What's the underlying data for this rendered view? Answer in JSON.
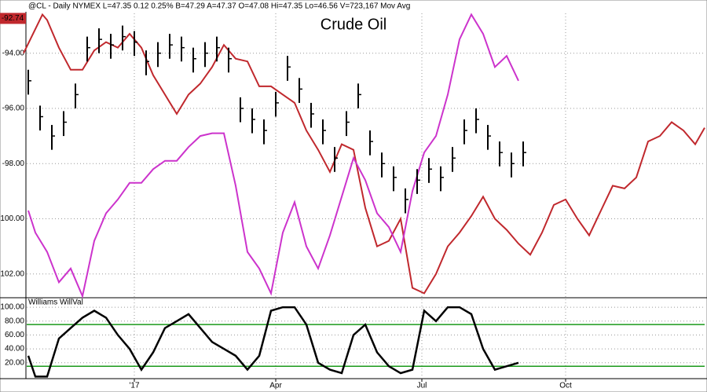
{
  "chart_data": [
    {
      "type": "ohlc",
      "title": "Crude Oil",
      "subtitle": "@CL - Daily  NYMEX  L=47.35  0.12  0.25%  B=47.29  A=47.37  O=47.08  Hi=47.35  Lo=46.56  V=723,167  Mov Avg",
      "xlim": [
        0,
        289
      ],
      "xticks": [
        {
          "value": 47,
          "label": "'17"
        },
        {
          "value": 107,
          "label": "Apr"
        },
        {
          "value": 169,
          "label": "Jul"
        },
        {
          "value": 230,
          "label": "Oct"
        }
      ],
      "ylim": [
        -102.86,
        -92.5
      ],
      "yticks": [
        {
          "value": -94,
          "label": "-94.00"
        },
        {
          "value": -96,
          "label": "-96.00"
        },
        {
          "value": -98,
          "label": "-98.00"
        },
        {
          "value": -100,
          "label": "-100.00"
        },
        {
          "value": -102,
          "label": "-102.00"
        }
      ],
      "last": {
        "value": -92.74,
        "label": "-92.74",
        "color": "#c0282d"
      },
      "grid": true,
      "bars": {
        "color": "#000000",
        "x": [
          2,
          7,
          12,
          17,
          22,
          27,
          32,
          37,
          42,
          47,
          52,
          57,
          62,
          67,
          72,
          77,
          82,
          87,
          92,
          97,
          102,
          107,
          112,
          117,
          122,
          127,
          132,
          137,
          142,
          147,
          152,
          157,
          162,
          167,
          172,
          177,
          182,
          187,
          192,
          197,
          202,
          207,
          212
        ],
        "high": [
          -94.6,
          -95.9,
          -96.6,
          -96.1,
          -95.1,
          -93.4,
          -93.1,
          -93.3,
          -93.0,
          -93.2,
          -93.9,
          -93.6,
          -93.3,
          -93.4,
          -93.8,
          -93.6,
          -93.4,
          -93.8,
          -95.6,
          -96.0,
          -96.4,
          -95.4,
          -94.1,
          -94.9,
          -95.8,
          -96.4,
          -97.4,
          -96.1,
          -95.1,
          -96.8,
          -97.6,
          -98.1,
          -98.9,
          -98.2,
          -97.8,
          -98.1,
          -97.4,
          -96.4,
          -96.0,
          -96.6,
          -97.2,
          -97.6,
          -97.2
        ],
        "low": [
          -95.5,
          -96.8,
          -97.5,
          -97.0,
          -96.0,
          -94.3,
          -94.0,
          -94.2,
          -93.9,
          -94.1,
          -94.8,
          -94.5,
          -94.2,
          -94.3,
          -94.7,
          -94.5,
          -94.3,
          -94.7,
          -96.5,
          -96.9,
          -97.3,
          -96.3,
          -95.0,
          -95.8,
          -96.7,
          -97.3,
          -98.3,
          -97.0,
          -96.0,
          -97.7,
          -98.5,
          -99.0,
          -99.8,
          -99.1,
          -98.7,
          -99.0,
          -98.3,
          -97.3,
          -96.9,
          -97.5,
          -98.1,
          -98.5,
          -98.1
        ],
        "close": [
          -95.0,
          -96.3,
          -97.0,
          -96.5,
          -95.5,
          -93.8,
          -93.5,
          -93.7,
          -93.4,
          -93.6,
          -94.3,
          -94.0,
          -93.7,
          -93.8,
          -94.2,
          -94.0,
          -93.8,
          -94.2,
          -96.0,
          -96.4,
          -96.8,
          -95.8,
          -94.5,
          -95.3,
          -96.2,
          -96.8,
          -97.8,
          -96.5,
          -95.5,
          -97.2,
          -98.0,
          -98.5,
          -99.3,
          -98.6,
          -98.2,
          -98.5,
          -97.8,
          -96.8,
          -96.4,
          -97.0,
          -97.6,
          -98.0,
          -97.6
        ]
      },
      "lines": [
        {
          "color": "#c0282d",
          "x": [
            0,
            8,
            10,
            15,
            20,
            25,
            30,
            35,
            40,
            45,
            50,
            55,
            60,
            65,
            70,
            75,
            80,
            85,
            90,
            95,
            100,
            105,
            110,
            115,
            120,
            125,
            130,
            135,
            140,
            145,
            150,
            155,
            160,
            165,
            170,
            175,
            180,
            185,
            190,
            195,
            200,
            205,
            210,
            215,
            220,
            225,
            230,
            235,
            240,
            245,
            250,
            255,
            260,
            265,
            270,
            275,
            280,
            285,
            289
          ],
          "values": [
            -94.0,
            -92.6,
            -92.8,
            -93.8,
            -94.6,
            -94.6,
            -93.9,
            -93.6,
            -93.8,
            -93.3,
            -93.8,
            -94.8,
            -95.5,
            -96.2,
            -95.5,
            -95.1,
            -94.5,
            -93.7,
            -94.2,
            -94.3,
            -95.2,
            -95.2,
            -95.5,
            -95.8,
            -96.8,
            -97.5,
            -98.3,
            -97.3,
            -97.5,
            -99.6,
            -101.0,
            -100.8,
            -100.0,
            -102.5,
            -102.7,
            -102.0,
            -101.0,
            -100.5,
            -99.9,
            -99.2,
            -100.0,
            -100.4,
            -100.9,
            -101.3,
            -100.5,
            -99.5,
            -99.3,
            -100.0,
            -100.6,
            -99.7,
            -98.8,
            -98.9,
            -98.5,
            -97.2,
            -97.0,
            -96.5,
            -96.8,
            -97.3,
            -96.7
          ]
        },
        {
          "color": "#cc33cc",
          "x": [
            2,
            5,
            10,
            15,
            20,
            25,
            30,
            35,
            40,
            45,
            50,
            55,
            60,
            65,
            70,
            75,
            80,
            85,
            90,
            95,
            100,
            105,
            110,
            115,
            120,
            125,
            130,
            135,
            140,
            145,
            150,
            155,
            160,
            165,
            170,
            175,
            180,
            185,
            190,
            195,
            200,
            205,
            210
          ],
          "values": [
            -99.7,
            -100.5,
            -101.2,
            -102.3,
            -101.8,
            -102.8,
            -100.8,
            -99.8,
            -99.3,
            -98.7,
            -98.7,
            -98.2,
            -97.9,
            -97.9,
            -97.4,
            -97.0,
            -96.9,
            -96.9,
            -98.8,
            -101.2,
            -101.8,
            -102.7,
            -100.5,
            -99.4,
            -101.0,
            -101.8,
            -100.6,
            -99.2,
            -97.8,
            -98.6,
            -99.8,
            -100.3,
            -101.2,
            -99.0,
            -97.6,
            -97.0,
            -95.5,
            -93.5,
            -92.6,
            -93.3,
            -94.5,
            -94.1,
            -95.0
          ]
        }
      ]
    },
    {
      "type": "line",
      "title": "Williams WillVal",
      "xlim": [
        0,
        289
      ],
      "ylim": [
        -2.9,
        113.7
      ],
      "yticks": [
        {
          "value": 20,
          "label": "20.00"
        },
        {
          "value": 40,
          "label": "40.00"
        },
        {
          "value": 60,
          "label": "60.00"
        },
        {
          "value": 80,
          "label": "80.00"
        },
        {
          "value": 100,
          "label": "100.00"
        }
      ],
      "hlines": [
        15,
        75
      ],
      "hline_color": "#1a9a1a",
      "grid": true,
      "color": "#000000",
      "x": [
        2,
        5,
        10,
        15,
        20,
        25,
        30,
        35,
        40,
        45,
        50,
        55,
        60,
        65,
        70,
        75,
        80,
        85,
        90,
        95,
        100,
        105,
        110,
        115,
        120,
        125,
        130,
        135,
        140,
        145,
        150,
        155,
        160,
        165,
        170,
        175,
        180,
        185,
        190,
        195,
        200,
        205,
        210
      ],
      "values": [
        30,
        0,
        0,
        55,
        70,
        85,
        95,
        85,
        60,
        40,
        10,
        35,
        70,
        80,
        90,
        70,
        50,
        40,
        30,
        10,
        30,
        95,
        100,
        100,
        75,
        20,
        10,
        5,
        60,
        75,
        35,
        15,
        5,
        10,
        95,
        80,
        100,
        100,
        90,
        40,
        10,
        15,
        20
      ]
    }
  ]
}
